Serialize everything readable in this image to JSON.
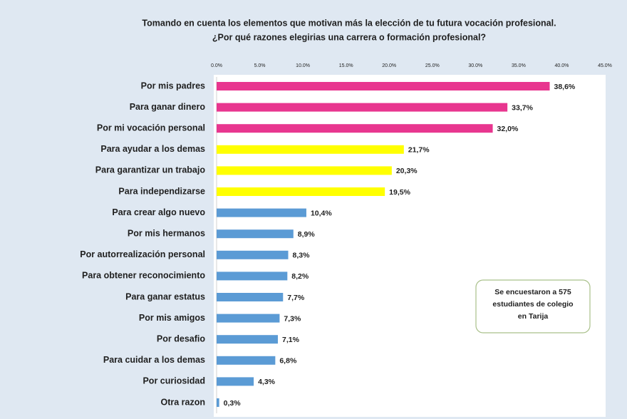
{
  "chart_data": {
    "type": "barh",
    "title": [
      "Tomando en cuenta los elementos que motivan más la elección de tu futura vocación profesional.",
      "¿Por qué razones elegirias una carrera o formación profesional?"
    ],
    "categories": [
      "Por mis padres",
      "Para ganar dinero",
      "Por mi vocación personal",
      "Para ayudar a los demas",
      "Para garantizar un trabajo",
      "Para independizarse",
      "Para crear algo nuevo",
      "Por mis hermanos",
      "Por autorrealización personal",
      "Para obtener reconocimiento",
      "Para ganar estatus",
      "Por mis amigos",
      "Por desafio",
      "Para cuidar a los demas",
      "Por curiosidad",
      "Otra razon"
    ],
    "values": [
      38.6,
      33.7,
      32.0,
      21.7,
      20.3,
      19.5,
      10.4,
      8.9,
      8.3,
      8.2,
      7.7,
      7.3,
      7.1,
      6.8,
      4.3,
      0.3
    ],
    "value_labels": [
      "38,6%",
      "33,7%",
      "32,0%",
      "21,7%",
      "20,3%",
      "19,5%",
      "10,4%",
      "8,9%",
      "8,3%",
      "8,2%",
      "7,7%",
      "7,3%",
      "7,1%",
      "6,8%",
      "4,3%",
      "0,3%"
    ],
    "colors": [
      "#e8368f",
      "#e8368f",
      "#e8368f",
      "#ffff00",
      "#ffff00",
      "#ffff00",
      "#5b9bd5",
      "#5b9bd5",
      "#5b9bd5",
      "#5b9bd5",
      "#5b9bd5",
      "#5b9bd5",
      "#5b9bd5",
      "#5b9bd5",
      "#5b9bd5",
      "#5b9bd5"
    ],
    "xlim": [
      0,
      45
    ],
    "xticks": [
      {
        "value": 0,
        "label": "0.0%"
      },
      {
        "value": 5,
        "label": "5.0%"
      },
      {
        "value": 10,
        "label": "10.0%"
      },
      {
        "value": 15,
        "label": "15.0%"
      },
      {
        "value": 20,
        "label": "20.0%"
      },
      {
        "value": 25,
        "label": "25.0%"
      },
      {
        "value": 30,
        "label": "30.0%"
      },
      {
        "value": 35,
        "label": "35.0%"
      },
      {
        "value": 40,
        "label": "40.0%"
      },
      {
        "value": 45,
        "label": "45.0%"
      }
    ],
    "annotation": [
      "Se encuestaron a 575",
      "estudiantes de colegio",
      "en Tarija"
    ]
  }
}
